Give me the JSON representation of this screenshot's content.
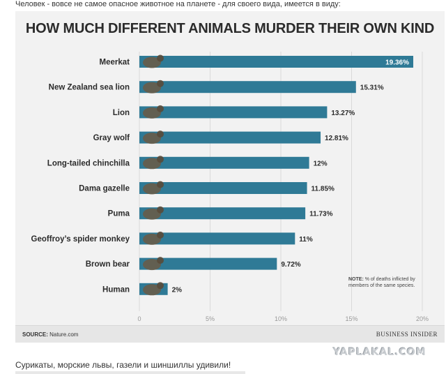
{
  "intro_text": "Человек - вовсе не самое опасное животное на планете - для своего вида, имеется в виду:",
  "chart_data": {
    "type": "bar",
    "orientation": "horizontal",
    "title": "HOW MUCH DIFFERENT ANIMALS MURDER THEIR OWN KIND",
    "categories": [
      "Meerkat",
      "New Zealand sea lion",
      "Lion",
      "Gray wolf",
      "Long-tailed chinchilla",
      "Dama gazelle",
      "Puma",
      "Geoffroy’s spider monkey",
      "Brown bear",
      "Human"
    ],
    "values": [
      19.36,
      15.31,
      13.27,
      12.81,
      12,
      11.85,
      11.73,
      11,
      9.72,
      2
    ],
    "value_labels": [
      "19.36%",
      "15.31%",
      "13.27%",
      "12.81%",
      "12%",
      "11.85%",
      "11.73%",
      "11%",
      "9.72%",
      "2%"
    ],
    "x_ticks": [
      "0",
      "5%",
      "10%",
      "15%",
      "20%"
    ],
    "xlim": [
      0,
      20
    ],
    "bar_color": "#2f7a96",
    "grid": true
  },
  "note": {
    "label": "NOTE:",
    "text": "% of deaths inflicted by members of the same species."
  },
  "footer": {
    "source_label": "SOURCE:",
    "source_text": "Nature.com",
    "brand": "BUSINESS INSIDER"
  },
  "watermark": "YAPLAKAL.COM",
  "caption": "Сурикаты, морские львы, газели и шиншиллы удивили!"
}
